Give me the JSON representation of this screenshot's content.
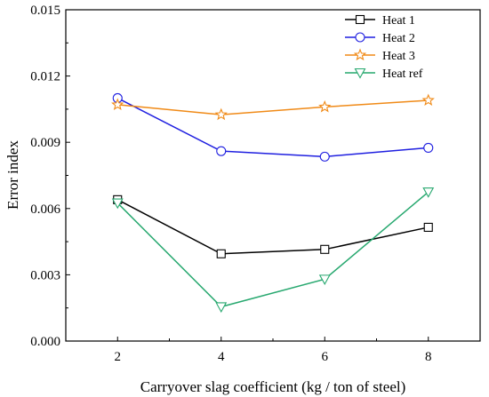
{
  "chart_data": {
    "type": "line",
    "title": "",
    "xlabel": "Carryover slag coefficient (kg / ton of steel)",
    "ylabel": "Error index",
    "x": [
      2,
      4,
      6,
      8
    ],
    "xlim": [
      1,
      9
    ],
    "ylim": [
      0,
      0.015
    ],
    "xticks": [
      2,
      4,
      6,
      8
    ],
    "yticks": [
      0,
      0.003,
      0.006,
      0.009,
      0.012,
      0.015
    ],
    "xtick_labels": [
      "2",
      "4",
      "6",
      "8"
    ],
    "ytick_labels": [
      "0.000",
      "0.003",
      "0.006",
      "0.009",
      "0.012",
      "0.015"
    ],
    "grid": false,
    "legend_position": "top-right",
    "series": [
      {
        "name": "Heat 1",
        "values": [
          0.0064,
          0.00395,
          0.00415,
          0.00515
        ],
        "color": "#000000",
        "marker": "square"
      },
      {
        "name": "Heat 2",
        "values": [
          0.011,
          0.0086,
          0.00835,
          0.00875
        ],
        "color": "#1f1fe0",
        "marker": "circle"
      },
      {
        "name": "Heat 3",
        "values": [
          0.0107,
          0.01025,
          0.0106,
          0.0109
        ],
        "color": "#f08a17",
        "marker": "star"
      },
      {
        "name": "Heat ref",
        "values": [
          0.00625,
          0.00155,
          0.0028,
          0.00675
        ],
        "color": "#27a86f",
        "marker": "triangle-down"
      }
    ]
  }
}
